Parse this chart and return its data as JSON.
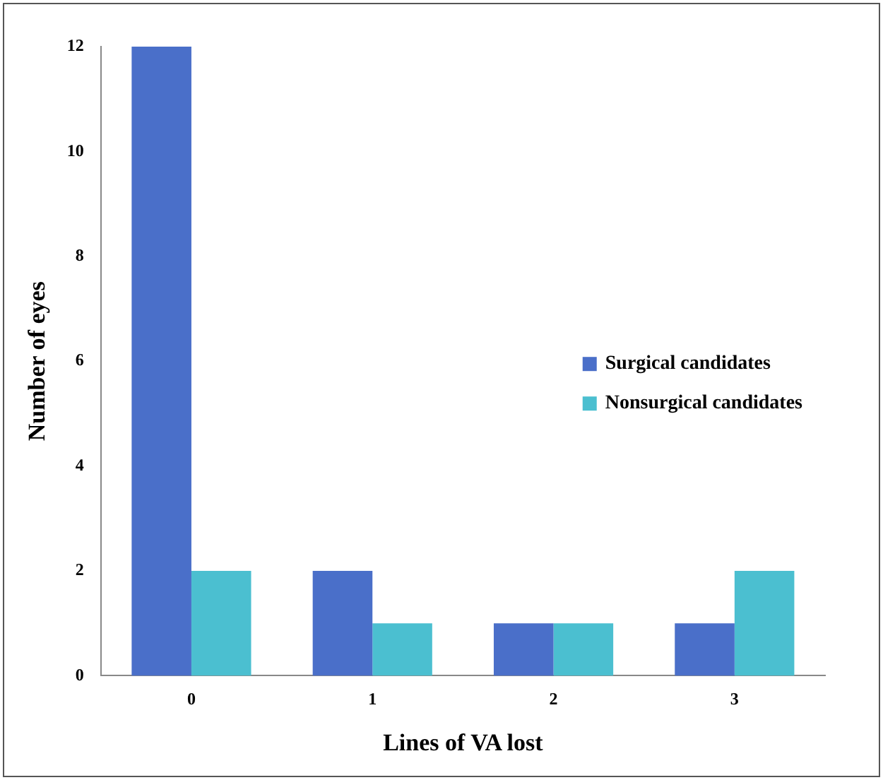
{
  "chart_data": {
    "type": "bar",
    "xlabel": "Lines of VA lost",
    "ylabel": "Number of eyes",
    "categories": [
      "0",
      "1",
      "2",
      "3"
    ],
    "series": [
      {
        "name": "Surgical candidates",
        "color": "#4a6fc9",
        "values": [
          12,
          2,
          1,
          1
        ]
      },
      {
        "name": "Nonsurgical candidates",
        "color": "#4bbfd0",
        "values": [
          2,
          1,
          1,
          2
        ]
      }
    ],
    "ylim": [
      0,
      12
    ],
    "yticks": [
      0,
      2,
      4,
      6,
      8,
      10,
      12
    ],
    "grid": false,
    "legend": "right"
  }
}
